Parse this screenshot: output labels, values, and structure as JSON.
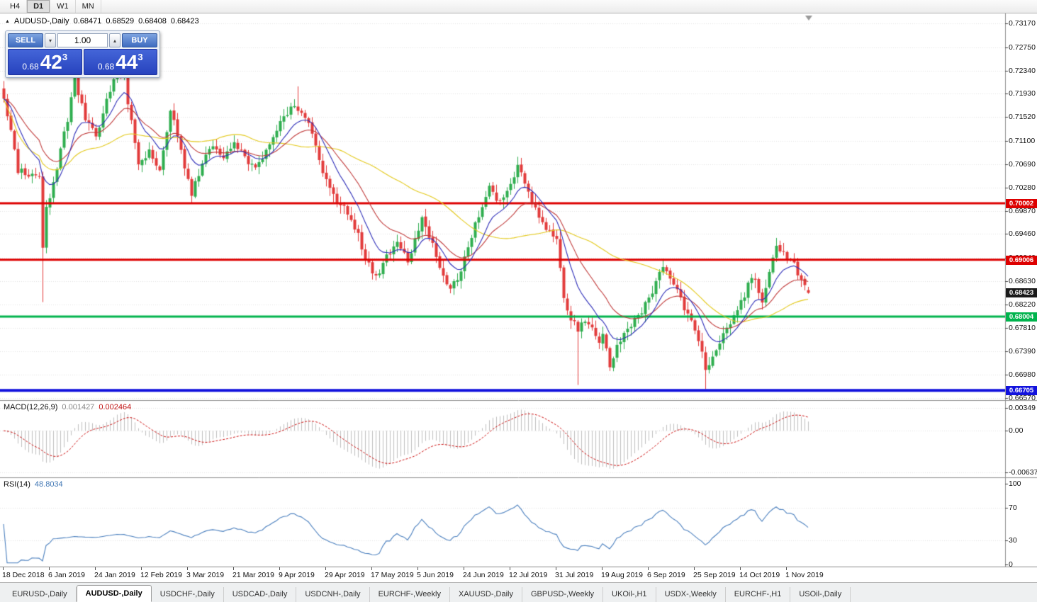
{
  "toolbar": {
    "timeframes": [
      "H4",
      "D1",
      "W1",
      "MN"
    ],
    "active": "D1"
  },
  "title": {
    "collapse_icon": "▲",
    "symbol": "AUDUSD-,Daily",
    "open": "0.68471",
    "high": "0.68529",
    "low": "0.68408",
    "close": "0.68423"
  },
  "trade_panel": {
    "sell_label": "SELL",
    "buy_label": "BUY",
    "volume": "1.00",
    "down_arrow": "▾",
    "up_arrow": "▴",
    "sell_price": {
      "prefix": "0.68",
      "big": "42",
      "pip": "3"
    },
    "buy_price": {
      "prefix": "0.68",
      "big": "44",
      "pip": "3"
    }
  },
  "indicators_text": {
    "macd_title": "MACD(12,26,9)",
    "macd_value1": "0.001427",
    "macd_value2": "0.002464",
    "rsi_title": "RSI(14)",
    "rsi_value": "48.8034"
  },
  "tabbar": {
    "tabs": [
      "EURUSD-,Daily",
      "AUDUSD-,Daily",
      "USDCHF-,Daily",
      "USDCAD-,Daily",
      "USDCNH-,Daily",
      "EURCHF-,Weekly",
      "XAUUSD-,Daily",
      "GBPUSD-,Weekly",
      "UKOil-,H1",
      "USDX-,Weekly",
      "EURCHF-,H1",
      "USOil-,Daily"
    ],
    "active_index": 1
  },
  "colors": {
    "up": "#2fae4f",
    "down": "#e23b3b",
    "grid": "#e2e2e2",
    "frame": "#8f8f8f",
    "tick": "#444444",
    "macd_hist": "#bfbfbf",
    "macd_signal": "#cc1111",
    "rsi_line": "#4a7fbe",
    "current_badge": "#1a1a1a",
    "shift_marker": "#9a9a9a"
  },
  "chart_data": {
    "type": "candlestick",
    "symbol": "AUDUSD",
    "period": "Daily",
    "bars": 228,
    "ohlc_current": {
      "open": 0.68471,
      "high": 0.68529,
      "low": 0.68408,
      "close": 0.68423
    },
    "y_axis": {
      "max": 0.7317,
      "min": 0.6657,
      "labels": [
        "0.73170",
        "0.72750",
        "0.72340",
        "0.71930",
        "0.71520",
        "0.71100",
        "0.70690",
        "0.70280",
        "0.69870",
        "0.69460",
        "0.69040",
        "0.68630",
        "0.68220",
        "0.67810",
        "0.67390",
        "0.66980",
        "0.66570"
      ]
    },
    "x_labels": [
      "18 Dec 2018",
      "6 Jan 2019",
      "24 Jan 2019",
      "12 Feb 2019",
      "3 Mar 2019",
      "21 Mar 2019",
      "9 Apr 2019",
      "29 Apr 2019",
      "17 May 2019",
      "5 Jun 2019",
      "24 Jun 2019",
      "12 Jul 2019",
      "31 Jul 2019",
      "19 Aug 2019",
      "6 Sep 2019",
      "25 Sep 2019",
      "14 Oct 2019",
      "1 Nov 2019"
    ],
    "levels": [
      {
        "price": 0.70002,
        "label": "0.70002",
        "color": "#dd0000",
        "width": 3
      },
      {
        "price": 0.69006,
        "label": "0.69006",
        "color": "#dd0000",
        "width": 3
      },
      {
        "price": 0.68004,
        "label": "0.68004",
        "color": "#00b34d",
        "width": 3
      },
      {
        "price": 0.66705,
        "label": "0.66705",
        "color": "#1212dd",
        "width": 4
      }
    ],
    "current_price": {
      "value": 0.68423,
      "label": "0.68423"
    },
    "moving_averages": [
      {
        "period": 10,
        "type": "ema",
        "color": "#2d2db8"
      },
      {
        "period": 21,
        "type": "ema",
        "color": "#c03a3a"
      },
      {
        "period": 50,
        "type": "sma",
        "color": "#e3c91c"
      }
    ],
    "indicators": {
      "macd": {
        "fast": 12,
        "slow": 26,
        "signal": 9,
        "value_main": 0.001427,
        "value_signal": 0.002464,
        "max": 0.00349,
        "min": -0.00637,
        "axis_labels": [
          "0.00349",
          "0.00",
          "-0.00637"
        ]
      },
      "rsi": {
        "period": 14,
        "value": 48.8034,
        "axis_labels": [
          "100",
          "70",
          "30",
          "0"
        ],
        "guide_levels": [
          70,
          30
        ]
      }
    },
    "price_path_anchors": [
      [
        0,
        0.719
      ],
      [
        1,
        0.7155
      ],
      [
        2,
        0.7125
      ],
      [
        4,
        0.706
      ],
      [
        8,
        0.7048
      ],
      [
        10,
        0.7052
      ],
      [
        11,
        0.6925
      ],
      [
        12,
        0.699
      ],
      [
        15,
        0.706
      ],
      [
        18,
        0.715
      ],
      [
        20,
        0.722
      ],
      [
        23,
        0.715
      ],
      [
        26,
        0.712
      ],
      [
        29,
        0.718
      ],
      [
        32,
        0.723
      ],
      [
        34,
        0.722
      ],
      [
        36,
        0.714
      ],
      [
        38,
        0.7075
      ],
      [
        41,
        0.709
      ],
      [
        44,
        0.7055
      ],
      [
        47,
        0.7165
      ],
      [
        49,
        0.712
      ],
      [
        53,
        0.7015
      ],
      [
        56,
        0.707
      ],
      [
        59,
        0.7105
      ],
      [
        62,
        0.7085
      ],
      [
        65,
        0.711
      ],
      [
        68,
        0.708
      ],
      [
        71,
        0.706
      ],
      [
        73,
        0.708
      ],
      [
        76,
        0.712
      ],
      [
        79,
        0.715
      ],
      [
        82,
        0.7175
      ],
      [
        84,
        0.716
      ],
      [
        87,
        0.7125
      ],
      [
        90,
        0.706
      ],
      [
        93,
        0.701
      ],
      [
        96,
        0.6995
      ],
      [
        99,
        0.696
      ],
      [
        102,
        0.6905
      ],
      [
        105,
        0.6872
      ],
      [
        108,
        0.6905
      ],
      [
        111,
        0.6935
      ],
      [
        114,
        0.69
      ],
      [
        118,
        0.6975
      ],
      [
        121,
        0.693
      ],
      [
        124,
        0.687
      ],
      [
        126,
        0.6845
      ],
      [
        128,
        0.687
      ],
      [
        131,
        0.692
      ],
      [
        134,
        0.698
      ],
      [
        137,
        0.7025
      ],
      [
        140,
        0.7
      ],
      [
        143,
        0.7035
      ],
      [
        145,
        0.707
      ],
      [
        147,
        0.703
      ],
      [
        150,
        0.699
      ],
      [
        153,
        0.696
      ],
      [
        156,
        0.6935
      ],
      [
        158,
        0.684
      ],
      [
        160,
        0.6795
      ],
      [
        162,
        0.678
      ],
      [
        164,
        0.6795
      ],
      [
        166,
        0.6775
      ],
      [
        168,
        0.6755
      ],
      [
        169,
        0.677
      ],
      [
        171,
        0.6706
      ],
      [
        173,
        0.6745
      ],
      [
        176,
        0.6775
      ],
      [
        179,
        0.68
      ],
      [
        182,
        0.683
      ],
      [
        186,
        0.6892
      ],
      [
        189,
        0.686
      ],
      [
        192,
        0.6815
      ],
      [
        195,
        0.678
      ],
      [
        197,
        0.6735
      ],
      [
        198,
        0.6705
      ],
      [
        200,
        0.673
      ],
      [
        203,
        0.677
      ],
      [
        206,
        0.6805
      ],
      [
        208,
        0.6825
      ],
      [
        210,
        0.6855
      ],
      [
        212,
        0.687
      ],
      [
        214,
        0.6825
      ],
      [
        216,
        0.688
      ],
      [
        218,
        0.6925
      ],
      [
        220,
        0.6915
      ],
      [
        223,
        0.689
      ],
      [
        225,
        0.6865
      ],
      [
        227,
        0.68423
      ]
    ],
    "spikes": [
      {
        "bar": 11,
        "low": 0.6826
      },
      {
        "bar": 83,
        "high": 0.7206
      },
      {
        "bar": 145,
        "high": 0.7082
      },
      {
        "bar": 162,
        "low": 0.668
      },
      {
        "bar": 198,
        "low": 0.6673
      },
      {
        "bar": 218,
        "high": 0.6936
      }
    ]
  }
}
